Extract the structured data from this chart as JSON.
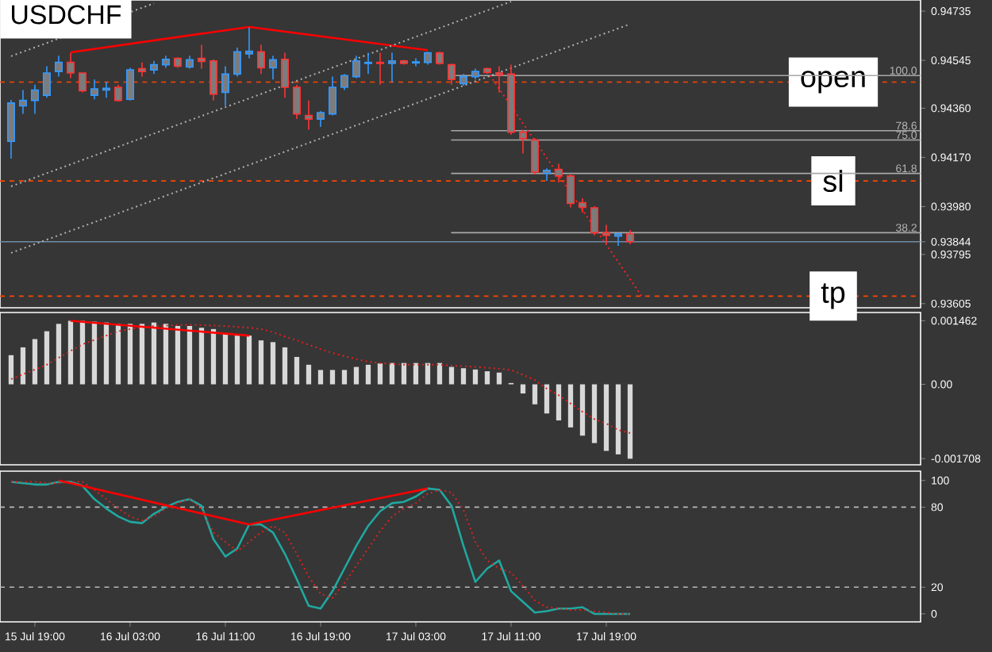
{
  "chart_data": [
    {
      "type": "candlestick",
      "title": "USDCHF",
      "categories": [
        null,
        null,
        null,
        null,
        null,
        null,
        null,
        null,
        null,
        null,
        null,
        null,
        null,
        null,
        null,
        null,
        null,
        null,
        null,
        null,
        null,
        null,
        null,
        null,
        null,
        null,
        null,
        null,
        null,
        null,
        null,
        null,
        null,
        null,
        null,
        null,
        null,
        null,
        null,
        null,
        null,
        null,
        null,
        null,
        null,
        null,
        null,
        null,
        null,
        null,
        null,
        null,
        null,
        null,
        null,
        null,
        null,
        null,
        null,
        null,
        null,
        null,
        null,
        null,
        null,
        null,
        null,
        null,
        null,
        null,
        null,
        null,
        null,
        null,
        null,
        null,
        null
      ],
      "ohlc": [
        [
          0.94232,
          0.94392,
          0.94165,
          0.9438
        ],
        [
          0.94369,
          0.9443,
          0.94338,
          0.9439
        ],
        [
          0.9439,
          0.94451,
          0.94338,
          0.9443
        ],
        [
          0.9441,
          0.94522,
          0.944,
          0.94496
        ],
        [
          0.94502,
          0.94563,
          0.94482,
          0.94537
        ],
        [
          0.94537,
          0.94574,
          0.94476,
          0.94496
        ],
        [
          0.94496,
          0.94496,
          0.94421,
          0.94427
        ],
        [
          0.9441,
          0.94471,
          0.94394,
          0.94435
        ],
        [
          0.9443,
          0.94461,
          0.944,
          0.94437
        ],
        [
          0.94441,
          0.94451,
          0.94386,
          0.9439
        ],
        [
          0.94394,
          0.94516,
          0.9439,
          0.94508
        ],
        [
          0.94513,
          0.94537,
          0.94482,
          0.94502
        ],
        [
          0.94508,
          0.94543,
          0.94492,
          0.94528
        ],
        [
          0.94528,
          0.94563,
          0.94516,
          0.94549
        ],
        [
          0.94553,
          0.94557,
          0.94516,
          0.94522
        ],
        [
          0.94519,
          0.94563,
          0.94513,
          0.94547
        ],
        [
          0.94553,
          0.94605,
          0.94513,
          0.94541
        ],
        [
          0.94543,
          0.94549,
          0.9439,
          0.94414
        ],
        [
          0.94421,
          0.94522,
          0.94369,
          0.94492
        ],
        [
          0.94492,
          0.94594,
          0.94482,
          0.94578
        ],
        [
          0.9457,
          0.94672,
          0.94553,
          0.9458
        ],
        [
          0.94578,
          0.94605,
          0.94492,
          0.94516
        ],
        [
          0.94516,
          0.94563,
          0.94471,
          0.94547
        ],
        [
          0.94549,
          0.94574,
          0.944,
          0.94441
        ],
        [
          0.94441,
          0.94451,
          0.94318,
          0.94338
        ],
        [
          0.94332,
          0.9439,
          0.94277,
          0.94318
        ],
        [
          0.94318,
          0.94349,
          0.94288,
          0.94343
        ],
        [
          0.94338,
          0.94482,
          0.94332,
          0.94441
        ],
        [
          0.94441,
          0.94492,
          0.9443,
          0.94486
        ],
        [
          0.94482,
          0.94563,
          0.94476,
          0.94543
        ],
        [
          0.94533,
          0.94574,
          0.94492,
          0.94537
        ],
        [
          0.94537,
          0.94574,
          0.94451,
          0.94533
        ],
        [
          0.94533,
          0.94574,
          0.94461,
          0.94543
        ],
        [
          0.94543,
          0.94547,
          0.94528,
          0.94533
        ],
        [
          0.94535,
          0.94553,
          0.94522,
          0.94539
        ],
        [
          0.94537,
          0.94578,
          0.94528,
          0.94574
        ],
        [
          0.94574,
          0.94578,
          0.94528,
          0.94533
        ],
        [
          0.94528,
          0.94533,
          0.94451,
          0.94471
        ],
        [
          0.94455,
          0.94492,
          0.94447,
          0.94482
        ],
        [
          0.94482,
          0.94513,
          0.94471,
          0.94502
        ],
        [
          0.94513,
          0.94516,
          0.94493,
          0.94498
        ],
        [
          0.94496,
          0.94522,
          0.94421,
          0.94488
        ],
        [
          0.94492,
          0.94528,
          0.94257,
          0.94267
        ],
        [
          0.94267,
          0.94277,
          0.94185,
          0.94243
        ],
        [
          0.94237,
          0.94243,
          0.94104,
          0.94114
        ],
        [
          0.94108,
          0.94128,
          0.94079,
          0.9412
        ],
        [
          0.94124,
          0.94145,
          0.94073,
          0.94098
        ],
        [
          0.94098,
          0.94104,
          0.93977,
          0.93992
        ],
        [
          0.93995,
          0.94012,
          0.93957,
          0.93977
        ],
        [
          0.93975,
          0.93981,
          0.93869,
          0.93879
        ],
        [
          0.93879,
          0.93909,
          0.93834,
          0.93869
        ],
        [
          0.93866,
          0.93879,
          0.93828,
          0.93875
        ],
        [
          0.93875,
          0.93889,
          0.93834,
          0.93844
        ],
        null,
        null,
        null,
        null,
        null,
        null,
        null,
        null,
        null,
        null,
        null,
        null,
        null,
        null,
        null,
        null,
        null,
        null,
        null,
        null,
        null,
        null,
        null,
        null
      ],
      "colors": [
        "#3399ff",
        "#3399ff",
        "#3399ff",
        "#3399ff",
        "#3399ff",
        "#ff3333",
        "#ff3333",
        "#3399ff",
        "#3399ff",
        "#ff3333",
        "#3399ff",
        "#ff3333",
        "#3399ff",
        "#3399ff",
        "#ff3333",
        "#3399ff",
        "#ff3333",
        "#ff3333",
        "#3399ff",
        "#3399ff",
        "#3399ff",
        "#ff3333",
        "#3399ff",
        "#ff3333",
        "#ff3333",
        "#ff3333",
        "#3399ff",
        "#3399ff",
        "#3399ff",
        "#3399ff",
        "#3399ff",
        "#ff3333",
        "#3399ff",
        "#ff3333",
        "#3399ff",
        "#3399ff",
        "#ff3333",
        "#ff3333",
        "#3399ff",
        "#3399ff",
        "#ff3333",
        "#ff3333",
        "#ff3333",
        "#ff3333",
        "#ff3333",
        "#3399ff",
        "#ff3333",
        "#ff3333",
        "#ff3333",
        "#ff3333",
        "#ff3333",
        "#3399ff",
        "#ff3333",
        null,
        null,
        null,
        null,
        null,
        null,
        null,
        null,
        null,
        null,
        null,
        null,
        null,
        null,
        null,
        null,
        null,
        null,
        null,
        null,
        null,
        null,
        null,
        null
      ],
      "series": [
        {
          "type": "line",
          "color": "#ff0000",
          "line_style": "solid",
          "values": [
            null,
            null,
            null,
            null,
            null,
            0.94576,
            null,
            null,
            null,
            null,
            null,
            null,
            null,
            null,
            null,
            null,
            null,
            null,
            null,
            null,
            0.94674,
            null,
            null,
            null,
            null,
            null,
            null,
            null,
            null,
            null,
            null,
            null,
            null,
            null,
            null,
            0.94584,
            null,
            null,
            null,
            null,
            null,
            null,
            null,
            null,
            null,
            null,
            null,
            null,
            null,
            null,
            null,
            null,
            null,
            null,
            null,
            null,
            null,
            null,
            null,
            null,
            null,
            null,
            null,
            null,
            null,
            null,
            null,
            null,
            null,
            null,
            null,
            null,
            null,
            null,
            null,
            null,
            null
          ]
        },
        {
          "type": "line",
          "color": "#ff2020",
          "line_style": "dotted",
          "values": [
            null,
            null,
            null,
            null,
            null,
            null,
            null,
            null,
            null,
            null,
            null,
            null,
            null,
            null,
            null,
            null,
            null,
            null,
            null,
            null,
            null,
            null,
            null,
            null,
            null,
            null,
            null,
            null,
            null,
            null,
            null,
            null,
            null,
            null,
            null,
            null,
            null,
            null,
            null,
            null,
            0.94502,
            null,
            null,
            null,
            null,
            null,
            null,
            null,
            null,
            null,
            null,
            null,
            null,
            0.93632,
            null,
            null,
            null,
            null,
            null,
            null,
            null,
            null,
            null,
            null,
            null,
            null,
            null,
            null,
            null,
            null,
            null,
            null,
            null,
            null,
            null,
            null,
            null
          ]
        },
        {
          "type": "line",
          "color": "#b0b0b0",
          "line_style": "dotted",
          "values": [
            0.94561,
            null,
            null,
            null,
            null,
            null,
            null,
            null,
            null,
            null,
            null,
            null,
            0.94765,
            null,
            null,
            null,
            null,
            null,
            null,
            null,
            null,
            null,
            null,
            null,
            null,
            null,
            null,
            null,
            null,
            null,
            null,
            null,
            null,
            null,
            null,
            null,
            null,
            null,
            null,
            null,
            null,
            null,
            null,
            null,
            null,
            null,
            null,
            null,
            null,
            null,
            null,
            null,
            null,
            null,
            null,
            null,
            null,
            null,
            null,
            null,
            null,
            null,
            null,
            null,
            null,
            null,
            null,
            null,
            null,
            null,
            null,
            null,
            null,
            null,
            null,
            null,
            null
          ]
        },
        {
          "type": "line",
          "color": "#b0b0b0",
          "line_style": "dotted",
          "values": [
            0.94058,
            null,
            null,
            null,
            null,
            null,
            null,
            null,
            null,
            null,
            null,
            null,
            null,
            null,
            null,
            null,
            null,
            null,
            null,
            null,
            null,
            null,
            null,
            null,
            null,
            null,
            null,
            null,
            null,
            null,
            null,
            null,
            null,
            null,
            null,
            null,
            null,
            null,
            null,
            null,
            null,
            null,
            0.94772,
            null,
            null,
            null,
            null,
            null,
            null,
            null,
            null,
            null,
            null,
            null,
            null,
            null,
            null,
            null,
            null,
            null,
            null,
            null,
            null,
            null,
            null,
            null,
            null,
            null,
            null,
            null,
            null,
            null,
            null,
            null,
            null,
            null,
            null
          ]
        },
        {
          "type": "line",
          "color": "#b0b0b0",
          "line_style": "dotted",
          "values": [
            0.93801,
            null,
            null,
            null,
            null,
            null,
            null,
            null,
            null,
            null,
            null,
            null,
            null,
            null,
            null,
            null,
            null,
            null,
            null,
            null,
            null,
            null,
            null,
            null,
            null,
            null,
            null,
            null,
            null,
            null,
            null,
            null,
            null,
            null,
            null,
            null,
            null,
            null,
            null,
            null,
            null,
            null,
            null,
            null,
            null,
            null,
            null,
            null,
            null,
            null,
            null,
            null,
            0.94685,
            null,
            null,
            null,
            null,
            null,
            null,
            null,
            null,
            null,
            null,
            null,
            null,
            null,
            null,
            null,
            null,
            null,
            null,
            null,
            null,
            null,
            null,
            null,
            null
          ]
        }
      ],
      "ref_lines": [
        {
          "axis": "y",
          "value": 0.94461,
          "label": "open",
          "color": "#ff4500",
          "line_style": "dashed"
        },
        {
          "axis": "y",
          "value": 0.94079,
          "label": "sl",
          "color": "#ff4500",
          "line_style": "dashed"
        },
        {
          "axis": "y",
          "value": 0.93634,
          "label": "tp",
          "color": "#ff4500",
          "line_style": "dashed"
        },
        {
          "axis": "y",
          "value": 0.94486,
          "color": "#a8a8a8",
          "line_style": "solid"
        },
        {
          "axis": "y",
          "value": 0.94273,
          "color": "#a8a8a8",
          "line_style": "solid"
        },
        {
          "axis": "y",
          "value": 0.94237,
          "color": "#a8a8a8",
          "line_style": "solid"
        },
        {
          "axis": "y",
          "value": 0.94108,
          "color": "#a8a8a8",
          "line_style": "solid"
        },
        {
          "axis": "y",
          "value": 0.93879,
          "color": "#a8a8a8",
          "line_style": "solid"
        },
        {
          "axis": "y",
          "value": 0.93844,
          "color": "#6f8ca6",
          "line_style": "solid"
        }
      ],
      "annotations": [
        {
          "text": "100.0",
          "y": 0.94486
        },
        {
          "text": "78.6",
          "y": 0.94273
        },
        {
          "text": "75.0",
          "y": 0.94237
        },
        {
          "text": "61.8",
          "y": 0.94108
        },
        {
          "text": "38.2",
          "y": 0.93879
        }
      ],
      "ylim": [
        0.93589,
        0.94778
      ],
      "yticks": [
        0.93605,
        0.93795,
        {
          "value": 0.93844,
          "label": "0.93844"
        },
        {
          "value": 0.9398,
          "label": "0.93980"
        },
        {
          "value": 0.9417,
          "label": "0.94170"
        },
        {
          "value": 0.9436,
          "label": "0.94360"
        },
        0.94545,
        0.94735
      ],
      "tick_labels": "y"
    },
    {
      "type": "bar",
      "categories": [
        null,
        null,
        null,
        null,
        null,
        null,
        null,
        null,
        null,
        null,
        null,
        null,
        null,
        null,
        null,
        null,
        null,
        null,
        null,
        null,
        null,
        null,
        null,
        null,
        null,
        null,
        null,
        null,
        null,
        null,
        null,
        null,
        null,
        null,
        null,
        null,
        null,
        null,
        null,
        null,
        null,
        null,
        null,
        null,
        null,
        null,
        null,
        null,
        null,
        null,
        null,
        null,
        null,
        null,
        null,
        null,
        null,
        null,
        null,
        null,
        null,
        null,
        null,
        null,
        null,
        null,
        null,
        null,
        null,
        null,
        null,
        null,
        null,
        null,
        null,
        null,
        null
      ],
      "series": [
        {
          "color": "#d8d8d8",
          "values": [
            0.00067,
            0.00085,
            0.00104,
            0.00122,
            0.00139,
            0.00146,
            0.00146,
            0.00144,
            0.00142,
            0.00139,
            0.00139,
            0.00139,
            0.00142,
            0.00139,
            0.00134,
            0.00134,
            0.0013,
            0.00127,
            0.00116,
            0.00112,
            0.00112,
            0.00101,
            0.00097,
            0.00085,
            0.00063,
            0.00045,
            0.00033,
            0.00033,
            0.00033,
            0.0004,
            0.00045,
            0.00048,
            0.00049,
            0.00049,
            0.00049,
            0.00049,
            0.00049,
            0.0004,
            0.00037,
            0.00034,
            0.0003,
            0.00027,
            3e-05,
            -0.00021,
            -0.00046,
            -0.00067,
            -0.00083,
            -0.00099,
            -0.00118,
            -0.00135,
            -0.00153,
            -0.00161,
            -0.00171,
            null,
            null,
            null,
            null,
            null,
            null,
            null,
            null,
            null,
            null,
            null,
            null,
            null,
            null,
            null,
            null,
            null,
            null,
            null,
            null,
            null,
            null,
            null,
            null
          ]
        },
        {
          "type": "line",
          "color": "#e02020",
          "line_style": "dotted",
          "values": [
            0.00012,
            0.00023,
            0.00034,
            0.00045,
            0.00061,
            0.00077,
            0.00092,
            0.00102,
            0.00112,
            0.00122,
            0.00127,
            0.00131,
            0.00134,
            0.00135,
            0.00136,
            0.00137,
            0.00136,
            0.00135,
            0.00134,
            0.00132,
            0.0013,
            0.00127,
            0.0012,
            0.0011,
            0.00101,
            0.00091,
            0.00081,
            0.00072,
            0.00065,
            0.00058,
            0.00052,
            0.00049,
            0.00047,
            0.00045,
            0.00045,
            0.00045,
            0.00045,
            0.00043,
            0.00042,
            0.0004,
            0.00038,
            0.00036,
            0.00033,
            0.00022,
            0.0001,
            -0.0001,
            -0.00025,
            -0.00044,
            -0.00063,
            -0.0008,
            -0.0009,
            -0.00105,
            -0.00112,
            null,
            null,
            null,
            null,
            null,
            null,
            null,
            null,
            null,
            null,
            null,
            null,
            null,
            null,
            null,
            null,
            null,
            null,
            null,
            null,
            null,
            null,
            null,
            null
          ]
        },
        {
          "type": "line",
          "color": "#ff0000",
          "line_style": "solid",
          "values": [
            null,
            null,
            null,
            null,
            null,
            0.00146,
            null,
            null,
            null,
            null,
            null,
            null,
            null,
            null,
            null,
            null,
            null,
            null,
            null,
            null,
            0.00112,
            null,
            null,
            null,
            null,
            null,
            null,
            null,
            null,
            null,
            null,
            null,
            null,
            null,
            null,
            null,
            null,
            null,
            null,
            null,
            null,
            null,
            null,
            null,
            null,
            null,
            null,
            null,
            null,
            null,
            null,
            null,
            null,
            null,
            null,
            null,
            null,
            null,
            null,
            null,
            null,
            null,
            null,
            null,
            null,
            null,
            null,
            null,
            null,
            null,
            null,
            null,
            null,
            null,
            null,
            null,
            null
          ]
        }
      ],
      "ylim": [
        -0.00185,
        0.00165
      ],
      "yticks": [
        {
          "value": -0.001708,
          "label": "-0.001708"
        },
        {
          "value": 0,
          "label": "0.00"
        },
        {
          "value": 0.001462,
          "label": "0.001462"
        }
      ],
      "tick_labels": "y"
    },
    {
      "type": "line",
      "categories": [
        null,
        null,
        "15 Jul 19:00",
        null,
        null,
        null,
        null,
        null,
        null,
        null,
        "16 Jul 03:00",
        null,
        null,
        null,
        null,
        null,
        null,
        null,
        "16 Jul 11:00",
        null,
        null,
        null,
        null,
        null,
        null,
        null,
        "16 Jul 19:00",
        null,
        null,
        null,
        null,
        null,
        null,
        null,
        "17 Jul 03:00",
        null,
        null,
        null,
        null,
        null,
        null,
        null,
        "17 Jul 11:00",
        null,
        null,
        null,
        null,
        null,
        null,
        null,
        "17 Jul 19:00",
        null,
        null,
        null,
        null,
        null,
        null,
        null,
        null,
        null,
        null,
        null,
        null,
        null,
        null,
        null,
        null,
        null,
        null,
        null,
        null,
        null,
        null,
        null,
        null,
        null,
        null
      ],
      "series": [
        {
          "color": "#20a8a0",
          "line_style": "solid",
          "values": [
            99,
            98,
            97,
            97,
            99,
            99,
            96,
            86,
            79,
            73,
            69,
            68,
            75,
            80,
            84,
            86,
            81,
            56,
            43,
            49,
            67,
            67,
            61,
            45,
            26,
            6,
            4,
            17,
            34,
            51,
            66,
            77,
            83,
            84,
            88,
            94,
            93,
            81,
            51,
            24,
            34,
            40,
            17,
            9,
            1,
            2,
            4,
            4,
            5,
            0,
            0,
            0,
            0,
            null,
            null,
            null,
            null,
            null,
            null,
            null,
            null,
            null,
            null,
            null,
            null,
            null,
            null,
            null,
            null,
            null,
            null,
            null,
            null,
            null,
            null,
            null,
            null
          ]
        },
        {
          "color": "#e02020",
          "line_style": "dotted",
          "values": [
            99,
            99,
            99,
            98,
            98,
            99,
            99,
            93,
            86,
            79,
            73,
            70,
            73,
            79,
            83,
            86,
            79,
            61,
            54,
            47,
            54,
            61,
            66,
            61,
            45,
            28,
            15,
            12,
            23,
            36,
            49,
            62,
            73,
            79,
            83,
            90,
            93,
            91,
            78,
            54,
            40,
            34,
            31,
            21,
            10,
            5,
            4,
            3,
            3,
            2,
            1,
            0,
            0,
            null,
            null,
            null,
            null,
            null,
            null,
            null,
            null,
            null,
            null,
            null,
            null,
            null,
            null,
            null,
            null,
            null,
            null,
            null,
            null,
            null,
            null,
            null,
            null
          ]
        },
        {
          "color": "#ff0000",
          "line_style": "solid",
          "values": [
            null,
            null,
            null,
            null,
            100,
            null,
            null,
            null,
            null,
            null,
            null,
            null,
            null,
            null,
            null,
            null,
            null,
            null,
            null,
            null,
            67,
            null,
            null,
            null,
            null,
            null,
            null,
            null,
            null,
            null,
            null,
            null,
            null,
            null,
            null,
            94,
            null,
            null,
            null,
            null,
            null,
            null,
            null,
            null,
            null,
            null,
            null,
            null,
            null,
            null,
            null,
            null,
            null,
            null,
            null,
            null,
            null,
            null,
            null,
            null,
            null,
            null,
            null,
            null,
            null,
            null,
            null,
            null,
            null,
            null,
            null,
            null,
            null,
            null,
            null,
            null,
            null
          ]
        }
      ],
      "ref_lines": [
        {
          "axis": "y",
          "value": 80,
          "color": "#b8b8b8",
          "line_style": "dashed"
        },
        {
          "axis": "y",
          "value": 20,
          "color": "#b8b8b8",
          "line_style": "dashed"
        }
      ],
      "ylim": [
        -6,
        107
      ],
      "yticks": [
        0,
        20,
        80,
        100
      ]
    }
  ]
}
